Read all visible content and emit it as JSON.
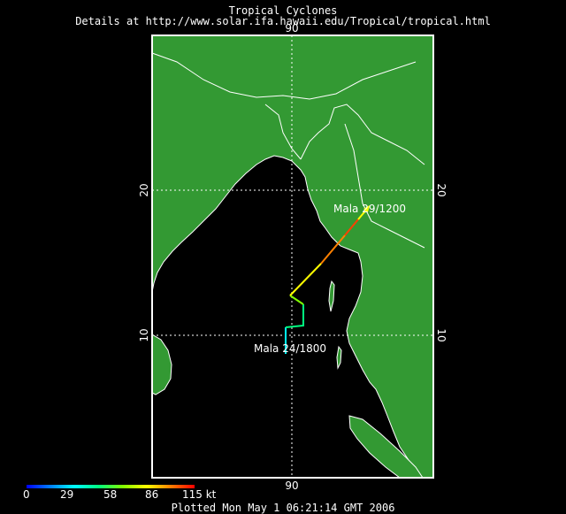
{
  "header": {
    "title": "Tropical Cyclones",
    "details": "Details at http://www.solar.ifa.hawaii.edu/Tropical/tropical.html"
  },
  "map": {
    "lon_label_top": "90",
    "lon_label_bottom": "90",
    "lat_labels": {
      "twenty": "20",
      "ten": "10"
    },
    "colors": {
      "land": "#339933",
      "ocean": "#000000",
      "borders": "#ffffff",
      "grid": "#ffffff"
    }
  },
  "storm": {
    "name": "Mala",
    "start_label": "Mala  24/1800",
    "end_label": "Mala  29/1200",
    "track_colors": [
      "#00ffff",
      "#00ff80",
      "#80ff00",
      "#ffff00",
      "#ff8000",
      "#ff4000"
    ]
  },
  "legend": {
    "ticks": [
      "0",
      "29",
      "58",
      "86",
      "115 kt"
    ]
  },
  "footer": {
    "plotted": "Plotted Mon May 1 06:21:14 GMT 2006"
  }
}
